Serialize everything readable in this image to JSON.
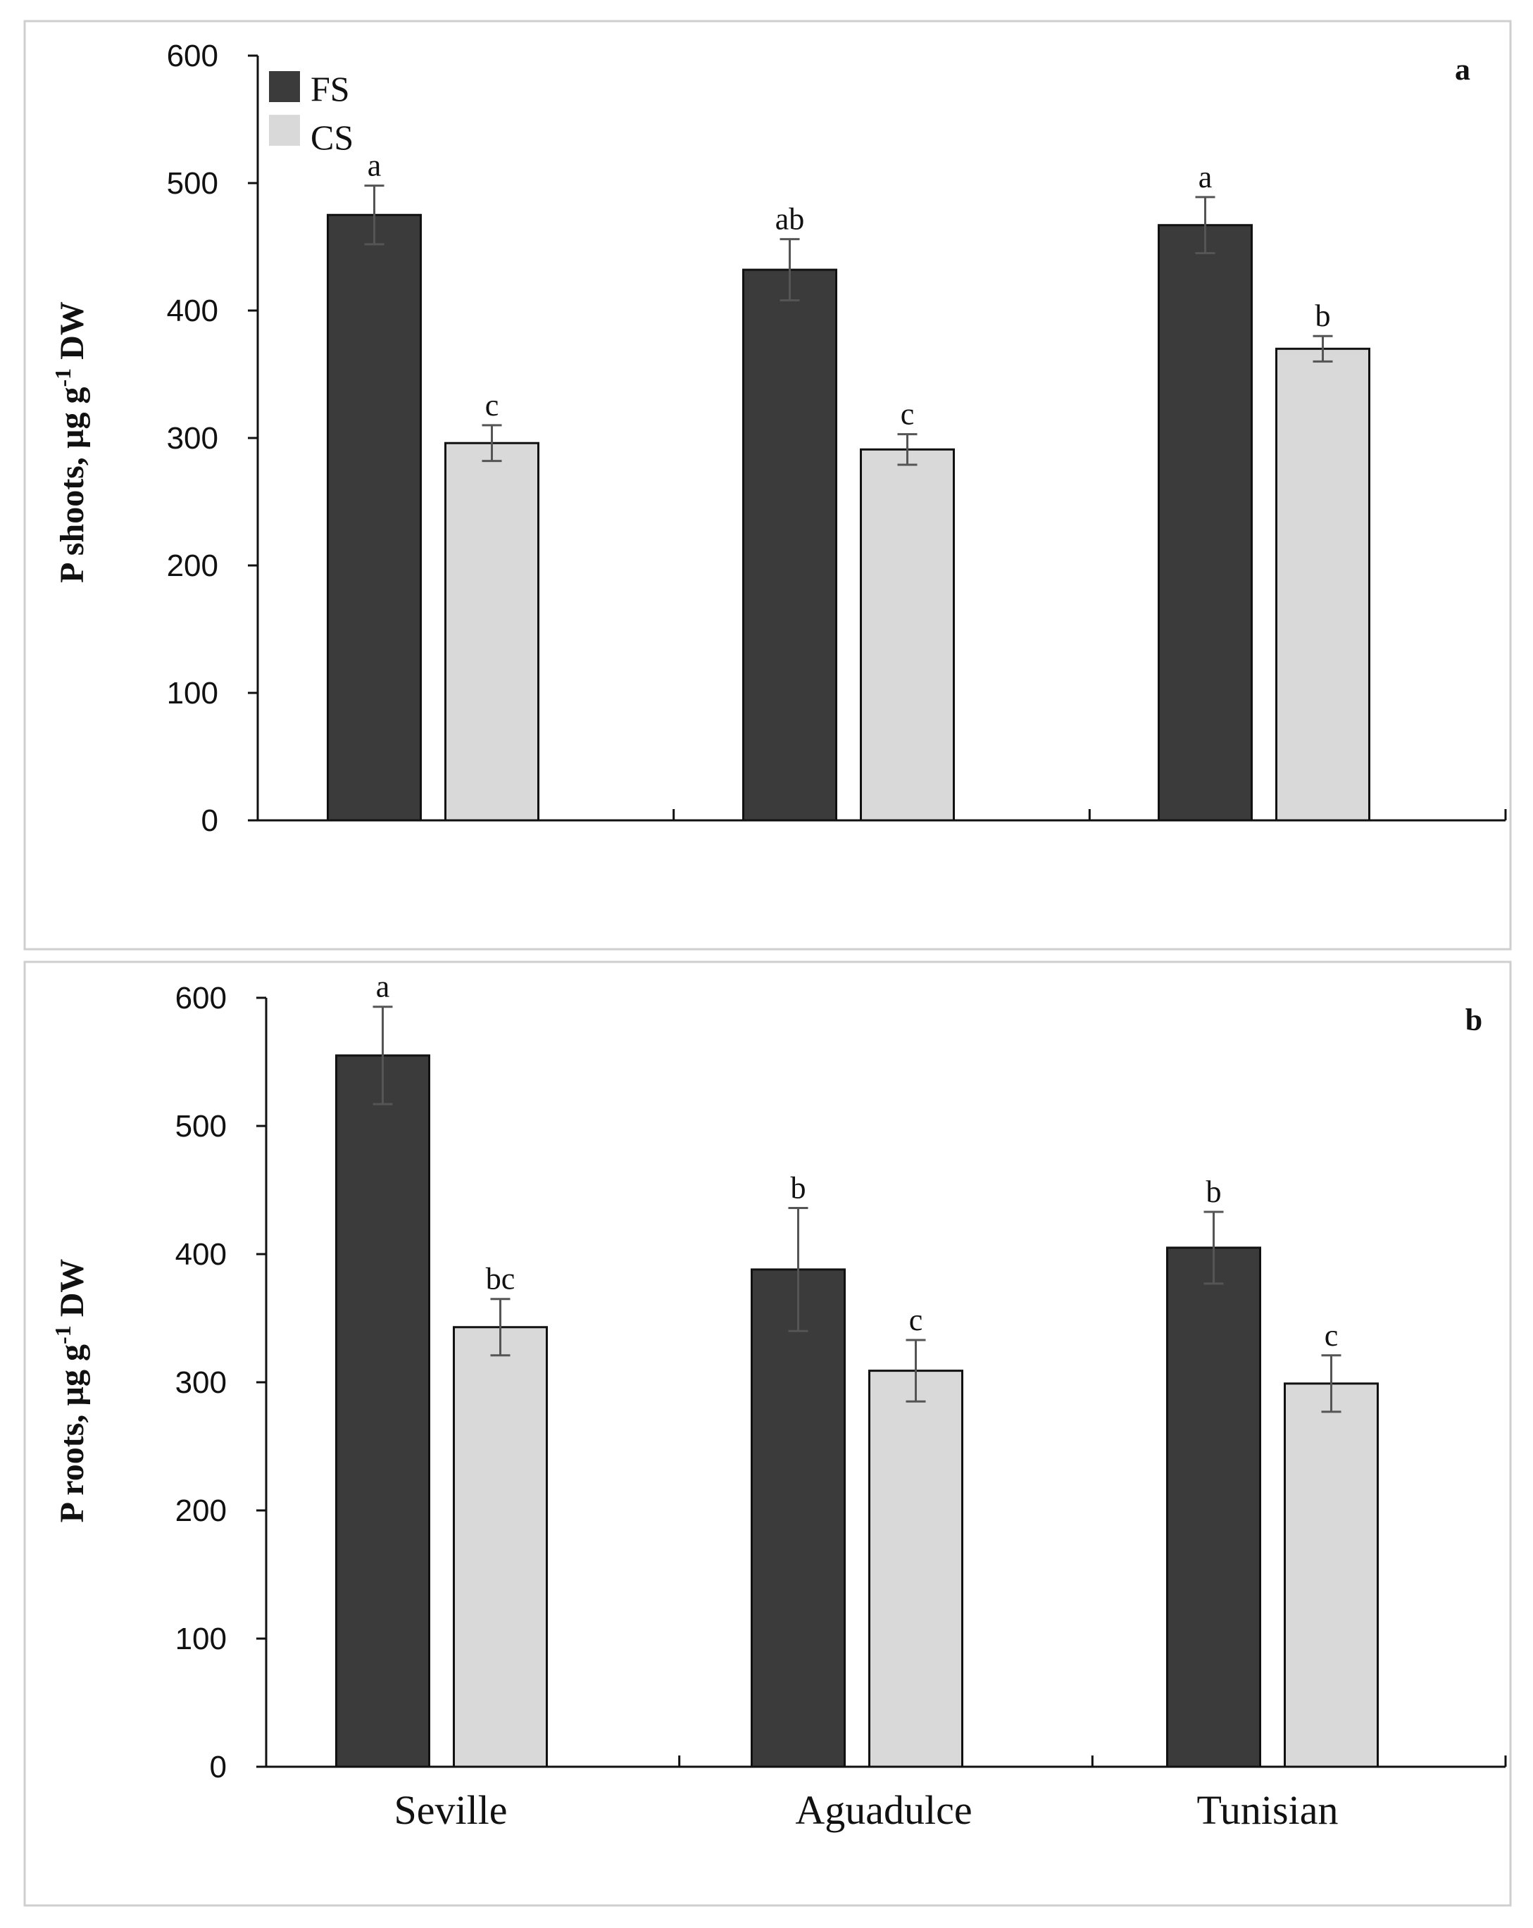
{
  "categories": [
    "Seville",
    "Aguadulce",
    "Tunisian"
  ],
  "legend": [
    {
      "name": "FS",
      "color": "#3b3b3b"
    },
    {
      "name": "CS",
      "color": "#d9d9d9"
    }
  ],
  "chart_data": [
    {
      "type": "bar",
      "panel_label": "a",
      "ylabel": "P shoots, µg g⁻¹ DW",
      "ylabel_parts": {
        "pre": "P shoots, µg g",
        "sup": "-1",
        "post": " DW"
      },
      "ylim": [
        0,
        600
      ],
      "yticks": [
        0,
        100,
        200,
        300,
        400,
        500,
        600
      ],
      "categories": [
        "Seville",
        "Aguadulce",
        "Tunisian"
      ],
      "series": [
        {
          "name": "FS",
          "color": "#3b3b3b",
          "values": [
            475,
            432,
            467
          ],
          "errors": [
            23,
            24,
            22
          ],
          "letters": [
            "a",
            "ab",
            "a"
          ]
        },
        {
          "name": "CS",
          "color": "#d9d9d9",
          "values": [
            296,
            291,
            370
          ],
          "errors": [
            14,
            12,
            10
          ],
          "letters": [
            "c",
            "c",
            "b"
          ]
        }
      ]
    },
    {
      "type": "bar",
      "panel_label": "b",
      "ylabel": "P roots, µg g⁻¹ DW",
      "ylabel_parts": {
        "pre": "P roots, µg g",
        "sup": "-1",
        "post": " DW"
      },
      "ylim": [
        0,
        600
      ],
      "yticks": [
        0,
        100,
        200,
        300,
        400,
        500,
        600
      ],
      "categories": [
        "Seville",
        "Aguadulce",
        "Tunisian"
      ],
      "series": [
        {
          "name": "FS",
          "color": "#3b3b3b",
          "values": [
            555,
            388,
            405
          ],
          "errors": [
            38,
            48,
            28
          ],
          "letters": [
            "a",
            "b",
            "b"
          ]
        },
        {
          "name": "CS",
          "color": "#d9d9d9",
          "values": [
            343,
            309,
            299
          ],
          "errors": [
            22,
            24,
            22
          ],
          "letters": [
            "bc",
            "c",
            "c"
          ]
        }
      ]
    }
  ]
}
